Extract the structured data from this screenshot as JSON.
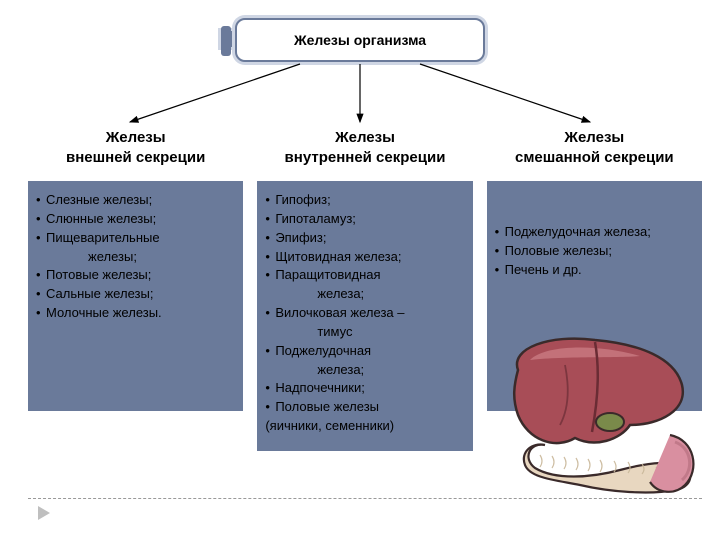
{
  "title": "Железы организма",
  "arrow_color": "#000000",
  "box_border": "#6a7a9a",
  "box_outer": "#cfd6e4",
  "panel_bg": "#6a7a9a",
  "columns": [
    {
      "title": "Железы\nвнешней секреции",
      "items": [
        "Слезные железы;",
        "Слюнные железы;",
        "Пищеварительные\n                железы;",
        "Потовые железы;",
        "Сальные железы;",
        "Молочные железы."
      ]
    },
    {
      "title": "Железы\nвнутренней секреции",
      "items": [
        "Гипофиз;",
        "Гипоталамуз;",
        "Эпифиз;",
        "Щитовидная железа;",
        "Паращитовидная\n                   железа;",
        "Вилочковая железа –\n                       тимус",
        "Поджелудочная\n                   железа;",
        "Надпочечники;",
        "Половые железы\n(яичники, семенники)"
      ]
    },
    {
      "title": "Железы\nсмешанной секреции",
      "items": [
        "Поджелудочная железа;",
        "Половые железы;",
        "Печень  и др."
      ]
    }
  ],
  "organ_colors": {
    "liver_main": "#a84d57",
    "liver_light": "#c97a82",
    "liver_dark": "#6a2c34",
    "pancreas": "#e8d7c0",
    "pancreas_shadow": "#c9b89a",
    "intestine": "#d98fa0",
    "outline": "#3a2a2a"
  }
}
